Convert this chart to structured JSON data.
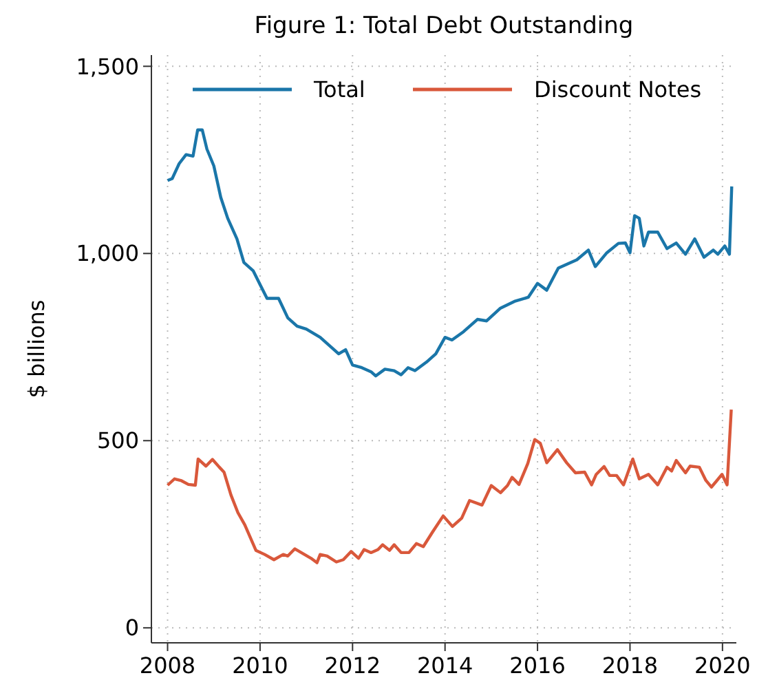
{
  "chart_data": {
    "type": "line",
    "title": "Figure 1: Total Debt Outstanding",
    "ylabel": "$ billions",
    "xlim": [
      2007.65,
      2020.3
    ],
    "xticks": [
      2008,
      2010,
      2012,
      2014,
      2016,
      2018,
      2020
    ],
    "ylim": [
      -40,
      1530
    ],
    "yticks": [
      0,
      500,
      {
        "value": 1000,
        "label": "1,000"
      },
      {
        "value": 1500,
        "label": "1,500"
      }
    ],
    "grid": true,
    "legend": "top",
    "line_style": "solid",
    "marker": "none",
    "series": [
      {
        "name": "Total",
        "color": "#1a76a9",
        "x": [
          2008,
          2008.1,
          2008.25,
          2008.4,
          2008.55,
          2008.65,
          2008.75,
          2008.85,
          2009,
          2009.15,
          2009.3,
          2009.5,
          2009.65,
          2009.85,
          2010,
          2010.15,
          2010.4,
          2010.6,
          2010.8,
          2011,
          2011.3,
          2011.5,
          2011.7,
          2011.85,
          2012,
          2012.2,
          2012.4,
          2012.5,
          2012.7,
          2012.9,
          2013.05,
          2013.2,
          2013.35,
          2013.6,
          2013.8,
          2014,
          2014.15,
          2014.4,
          2014.7,
          2014.9,
          2015.2,
          2015.5,
          2015.8,
          2016,
          2016.2,
          2016.45,
          2016.65,
          2016.85,
          2017.1,
          2017.25,
          2017.5,
          2017.75,
          2017.9,
          2018,
          2018.1,
          2018.2,
          2018.3,
          2018.4,
          2018.6,
          2018.8,
          2019,
          2019.2,
          2019.4,
          2019.6,
          2019.8,
          2019.9,
          2020.05,
          2020.15,
          2020.2
        ],
        "values": [
          1195,
          1200,
          1240,
          1264,
          1260,
          1330,
          1330,
          1279,
          1234,
          1150,
          1094,
          1039,
          976,
          954,
          917,
          880,
          880,
          828,
          806,
          798,
          776,
          754,
          732,
          743,
          702,
          695,
          684,
          673,
          691,
          687,
          676,
          695,
          687,
          710,
          732,
          776,
          769,
          791,
          824,
          820,
          854,
          872,
          883,
          920,
          902,
          961,
          972,
          983,
          1009,
          965,
          1002,
          1027,
          1028,
          1002,
          1101,
          1094,
          1020,
          1057,
          1057,
          1013,
          1028,
          998,
          1039,
          990,
          1009,
          998,
          1020,
          998,
          1179
        ]
      },
      {
        "name": "Discount Notes",
        "color": "#d9583b",
        "x": [
          2008,
          2008.15,
          2008.3,
          2008.45,
          2008.6,
          2008.66,
          2008.83,
          2008.97,
          2009.12,
          2009.22,
          2009.37,
          2009.52,
          2009.67,
          2009.91,
          2010.1,
          2010.3,
          2010.5,
          2010.6,
          2010.75,
          2010.96,
          2011.1,
          2011.23,
          2011.3,
          2011.45,
          2011.65,
          2011.8,
          2011.97,
          2012.13,
          2012.25,
          2012.4,
          2012.55,
          2012.65,
          2012.8,
          2012.9,
          2013.05,
          2013.22,
          2013.38,
          2013.53,
          2013.73,
          2013.96,
          2014.16,
          2014.36,
          2014.53,
          2014.8,
          2015,
          2015.2,
          2015.35,
          2015.45,
          2015.6,
          2015.79,
          2015.94,
          2016.06,
          2016.2,
          2016.43,
          2016.63,
          2016.82,
          2017.02,
          2017.17,
          2017.27,
          2017.44,
          2017.56,
          2017.71,
          2017.86,
          2018.06,
          2018.2,
          2018.4,
          2018.6,
          2018.8,
          2018.9,
          2019,
          2019.2,
          2019.3,
          2019.5,
          2019.64,
          2019.76,
          2019.87,
          2019.99,
          2020.1,
          2020.19
        ],
        "values": [
          381,
          398,
          393,
          383,
          381,
          451,
          432,
          450,
          429,
          416,
          355,
          308,
          275,
          207,
          196,
          182,
          196,
          192,
          211,
          196,
          186,
          174,
          196,
          192,
          176,
          182,
          204,
          186,
          209,
          201,
          209,
          222,
          207,
          222,
          201,
          201,
          225,
          217,
          256,
          299,
          271,
          293,
          340,
          328,
          380,
          361,
          380,
          402,
          383,
          439,
          503,
          493,
          441,
          476,
          441,
          414,
          416,
          382,
          410,
          431,
          407,
          407,
          382,
          451,
          398,
          410,
          382,
          429,
          419,
          447,
          414,
          432,
          429,
          394,
          376,
          392,
          410,
          382,
          583
        ]
      }
    ]
  }
}
